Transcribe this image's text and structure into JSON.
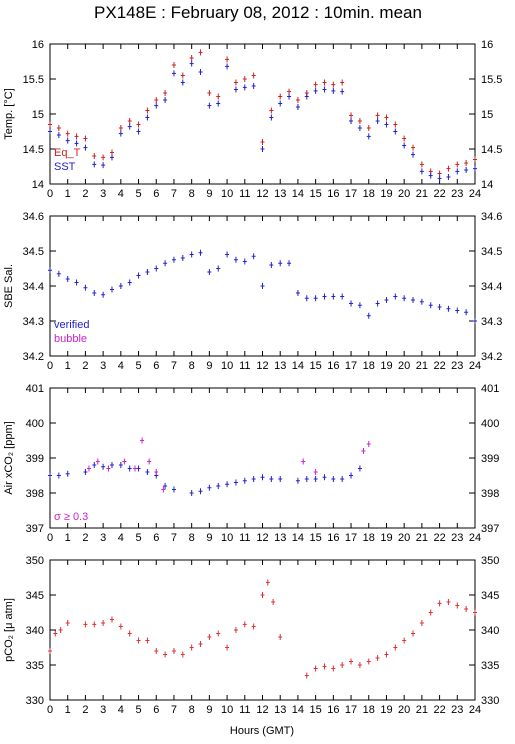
{
  "title": "PX148E : February 08, 2012 : 10min. mean",
  "xlabel": "Hours (GMT)",
  "x_ticks": [
    "0",
    "1",
    "2",
    "3",
    "4",
    "5",
    "6",
    "7",
    "8",
    "9",
    "10",
    "11",
    "12",
    "13",
    "14",
    "15",
    "16",
    "17",
    "18",
    "19",
    "20",
    "21",
    "22",
    "23",
    "24"
  ],
  "colors": {
    "eq_t": "#cc2222",
    "sst": "#2222cc",
    "verified": "#2222cc",
    "bubble": "#cc22cc",
    "pco2": "#dd3333"
  },
  "chart_data": [
    {
      "type": "scatter",
      "ylabel": "Temp. [°C]",
      "ylim": [
        14,
        16
      ],
      "yticks": [
        "14",
        "14.5",
        "15",
        "15.5",
        "16"
      ],
      "legend": [
        "Eq_T",
        "SST"
      ],
      "legend_position": "bottom-left",
      "series": [
        {
          "name": "Eq_T",
          "color": "#cc2222",
          "points": [
            [
              0.0,
              14.85
            ],
            [
              0.5,
              14.8
            ],
            [
              1.0,
              14.72
            ],
            [
              1.5,
              14.68
            ],
            [
              2.0,
              14.65
            ],
            [
              2.5,
              14.4
            ],
            [
              3.0,
              14.38
            ],
            [
              3.5,
              14.45
            ],
            [
              4.0,
              14.8
            ],
            [
              4.5,
              14.9
            ],
            [
              5.0,
              14.85
            ],
            [
              5.5,
              15.05
            ],
            [
              6.0,
              15.2
            ],
            [
              6.5,
              15.3
            ],
            [
              7.0,
              15.7
            ],
            [
              7.5,
              15.55
            ],
            [
              8.0,
              15.8
            ],
            [
              8.5,
              15.88
            ],
            [
              9.0,
              15.3
            ],
            [
              9.5,
              15.25
            ],
            [
              10.0,
              15.78
            ],
            [
              10.5,
              15.45
            ],
            [
              11.0,
              15.5
            ],
            [
              11.5,
              15.55
            ],
            [
              12.0,
              14.6
            ],
            [
              12.5,
              15.05
            ],
            [
              13.0,
              15.25
            ],
            [
              13.5,
              15.32
            ],
            [
              14.0,
              15.2
            ],
            [
              14.5,
              15.3
            ],
            [
              15.0,
              15.42
            ],
            [
              15.5,
              15.45
            ],
            [
              16.0,
              15.42
            ],
            [
              16.5,
              15.45
            ],
            [
              17.0,
              14.98
            ],
            [
              17.5,
              14.9
            ],
            [
              18.0,
              14.8
            ],
            [
              18.5,
              14.98
            ],
            [
              19.0,
              14.95
            ],
            [
              19.5,
              14.85
            ],
            [
              20.0,
              14.65
            ],
            [
              20.5,
              14.52
            ],
            [
              21.0,
              14.28
            ],
            [
              21.5,
              14.18
            ],
            [
              22.0,
              14.15
            ],
            [
              22.5,
              14.22
            ],
            [
              23.0,
              14.28
            ],
            [
              23.5,
              14.3
            ],
            [
              24.0,
              14.35
            ]
          ]
        },
        {
          "name": "SST",
          "color": "#2222cc",
          "points": [
            [
              0.0,
              14.75
            ],
            [
              0.5,
              14.7
            ],
            [
              1.0,
              14.62
            ],
            [
              1.5,
              14.58
            ],
            [
              2.0,
              14.52
            ],
            [
              2.5,
              14.28
            ],
            [
              3.0,
              14.27
            ],
            [
              3.5,
              14.38
            ],
            [
              4.0,
              14.72
            ],
            [
              4.5,
              14.82
            ],
            [
              5.0,
              14.75
            ],
            [
              5.5,
              14.95
            ],
            [
              6.0,
              15.12
            ],
            [
              6.5,
              15.2
            ],
            [
              7.0,
              15.58
            ],
            [
              7.5,
              15.45
            ],
            [
              8.0,
              15.72
            ],
            [
              8.5,
              15.6
            ],
            [
              9.0,
              15.12
            ],
            [
              9.5,
              15.15
            ],
            [
              10.0,
              15.68
            ],
            [
              10.5,
              15.35
            ],
            [
              11.0,
              15.38
            ],
            [
              11.5,
              15.4
            ],
            [
              12.0,
              14.5
            ],
            [
              12.5,
              14.95
            ],
            [
              13.0,
              15.15
            ],
            [
              13.5,
              15.25
            ],
            [
              14.0,
              15.1
            ],
            [
              14.5,
              15.25
            ],
            [
              15.0,
              15.33
            ],
            [
              15.5,
              15.35
            ],
            [
              16.0,
              15.33
            ],
            [
              16.5,
              15.32
            ],
            [
              17.0,
              14.9
            ],
            [
              17.5,
              14.8
            ],
            [
              18.0,
              14.68
            ],
            [
              18.5,
              14.9
            ],
            [
              19.0,
              14.85
            ],
            [
              19.5,
              14.75
            ],
            [
              20.0,
              14.55
            ],
            [
              20.5,
              14.42
            ],
            [
              21.0,
              14.18
            ],
            [
              21.5,
              14.12
            ],
            [
              22.0,
              14.08
            ],
            [
              22.5,
              14.1
            ],
            [
              23.0,
              14.18
            ],
            [
              23.5,
              14.2
            ],
            [
              24.0,
              14.22
            ]
          ]
        }
      ]
    },
    {
      "type": "scatter",
      "ylabel": "SBE Sal.",
      "ylim": [
        34.2,
        34.6
      ],
      "yticks": [
        "34.2",
        "34.3",
        "34.4",
        "34.5",
        "34.6"
      ],
      "legend": [
        "verified",
        "bubble"
      ],
      "legend_position": "bottom-left",
      "series": [
        {
          "name": "verified",
          "color": "#2222cc",
          "points": [
            [
              0.0,
              34.445
            ],
            [
              0.5,
              34.435
            ],
            [
              1.0,
              34.42
            ],
            [
              1.5,
              34.41
            ],
            [
              2.0,
              34.395
            ],
            [
              2.5,
              34.38
            ],
            [
              3.0,
              34.375
            ],
            [
              3.5,
              34.39
            ],
            [
              4.0,
              34.4
            ],
            [
              4.5,
              34.41
            ],
            [
              5.0,
              34.43
            ],
            [
              5.5,
              34.44
            ],
            [
              6.0,
              34.45
            ],
            [
              6.5,
              34.465
            ],
            [
              7.0,
              34.475
            ],
            [
              7.5,
              34.48
            ],
            [
              8.0,
              34.49
            ],
            [
              8.5,
              34.495
            ],
            [
              9.0,
              34.44
            ],
            [
              9.5,
              34.45
            ],
            [
              10.0,
              34.49
            ],
            [
              10.5,
              34.475
            ],
            [
              11.0,
              34.47
            ],
            [
              11.5,
              34.485
            ],
            [
              12.0,
              34.4
            ],
            [
              12.5,
              34.46
            ],
            [
              13.0,
              34.465
            ],
            [
              13.5,
              34.465
            ],
            [
              14.0,
              34.38
            ],
            [
              14.5,
              34.365
            ],
            [
              15.0,
              34.365
            ],
            [
              15.5,
              34.37
            ],
            [
              16.0,
              34.37
            ],
            [
              16.5,
              34.37
            ],
            [
              17.0,
              34.35
            ],
            [
              17.5,
              34.345
            ],
            [
              18.0,
              34.315
            ],
            [
              18.5,
              34.35
            ],
            [
              19.0,
              34.36
            ],
            [
              19.5,
              34.37
            ],
            [
              20.0,
              34.365
            ],
            [
              20.5,
              34.36
            ],
            [
              21.0,
              34.355
            ],
            [
              21.5,
              34.345
            ],
            [
              22.0,
              34.34
            ],
            [
              22.5,
              34.335
            ],
            [
              23.0,
              34.33
            ],
            [
              23.5,
              34.325
            ],
            [
              24.0,
              34.3
            ]
          ]
        }
      ]
    },
    {
      "type": "scatter",
      "ylabel": "Air xCO₂ [ppm]",
      "ylim": [
        397,
        401
      ],
      "yticks": [
        "397",
        "398",
        "399",
        "400",
        "401"
      ],
      "annotation": "σ ≥ 0.3",
      "series": [
        {
          "name": "verified",
          "color": "#2222cc",
          "points": [
            [
              0.0,
              398.5
            ],
            [
              0.5,
              398.5
            ],
            [
              1.0,
              398.55
            ],
            [
              2.0,
              398.6
            ],
            [
              2.5,
              398.8
            ],
            [
              3.0,
              398.75
            ],
            [
              3.5,
              398.8
            ],
            [
              4.0,
              398.8
            ],
            [
              4.5,
              398.7
            ],
            [
              5.0,
              398.7
            ],
            [
              5.5,
              398.6
            ],
            [
              6.0,
              398.5
            ],
            [
              6.5,
              398.2
            ],
            [
              7.0,
              398.1
            ],
            [
              8.0,
              398.0
            ],
            [
              8.5,
              398.05
            ],
            [
              9.0,
              398.15
            ],
            [
              9.5,
              398.2
            ],
            [
              10.0,
              398.25
            ],
            [
              10.5,
              398.3
            ],
            [
              11.0,
              398.35
            ],
            [
              11.5,
              398.4
            ],
            [
              12.0,
              398.45
            ],
            [
              12.5,
              398.4
            ],
            [
              13.0,
              398.4
            ],
            [
              14.0,
              398.35
            ],
            [
              14.5,
              398.4
            ],
            [
              15.0,
              398.4
            ],
            [
              15.5,
              398.45
            ],
            [
              16.0,
              398.4
            ],
            [
              16.5,
              398.4
            ],
            [
              17.0,
              398.5
            ],
            [
              17.5,
              398.7
            ]
          ]
        },
        {
          "name": "bubble",
          "color": "#cc22cc",
          "points": [
            [
              2.2,
              398.7
            ],
            [
              2.7,
              398.9
            ],
            [
              3.3,
              398.7
            ],
            [
              4.2,
              398.9
            ],
            [
              4.8,
              398.7
            ],
            [
              5.2,
              399.5
            ],
            [
              5.6,
              398.9
            ],
            [
              6.0,
              398.6
            ],
            [
              6.4,
              398.1
            ],
            [
              14.3,
              398.9
            ],
            [
              15.0,
              398.6
            ],
            [
              17.7,
              399.2
            ],
            [
              18.0,
              399.4
            ]
          ]
        }
      ]
    },
    {
      "type": "scatter",
      "ylabel": "pCO₂ [μ atm]",
      "ylim": [
        330,
        350
      ],
      "yticks": [
        "330",
        "335",
        "340",
        "345",
        "350"
      ],
      "series": [
        {
          "name": "pCO2",
          "color": "#dd3333",
          "points": [
            [
              0.0,
              337.0
            ],
            [
              0.3,
              339.5
            ],
            [
              0.6,
              340.0
            ],
            [
              1.0,
              341.0
            ],
            [
              2.0,
              340.8
            ],
            [
              2.5,
              340.8
            ],
            [
              3.0,
              341.0
            ],
            [
              3.5,
              341.5
            ],
            [
              4.0,
              340.5
            ],
            [
              4.5,
              339.5
            ],
            [
              5.0,
              338.5
            ],
            [
              5.5,
              338.5
            ],
            [
              6.0,
              337.0
            ],
            [
              6.5,
              336.5
            ],
            [
              7.0,
              337.0
            ],
            [
              7.5,
              336.5
            ],
            [
              8.0,
              337.5
            ],
            [
              8.5,
              338.0
            ],
            [
              9.0,
              339.0
            ],
            [
              9.5,
              339.5
            ],
            [
              10.0,
              337.5
            ],
            [
              10.5,
              340.0
            ],
            [
              11.0,
              340.8
            ],
            [
              11.5,
              340.5
            ],
            [
              12.0,
              345.0
            ],
            [
              12.3,
              346.8
            ],
            [
              12.6,
              344.0
            ],
            [
              13.0,
              339.0
            ],
            [
              14.5,
              333.5
            ],
            [
              15.0,
              334.5
            ],
            [
              15.5,
              334.8
            ],
            [
              16.0,
              334.5
            ],
            [
              16.5,
              335.0
            ],
            [
              17.0,
              335.5
            ],
            [
              17.5,
              335.0
            ],
            [
              18.0,
              335.5
            ],
            [
              18.5,
              336.0
            ],
            [
              19.0,
              336.5
            ],
            [
              19.5,
              337.5
            ],
            [
              20.0,
              338.5
            ],
            [
              20.5,
              339.5
            ],
            [
              21.0,
              341.0
            ],
            [
              21.5,
              342.5
            ],
            [
              22.0,
              343.8
            ],
            [
              22.5,
              344.0
            ],
            [
              23.0,
              343.5
            ],
            [
              23.5,
              343.0
            ],
            [
              24.0,
              342.5
            ]
          ]
        }
      ]
    }
  ]
}
